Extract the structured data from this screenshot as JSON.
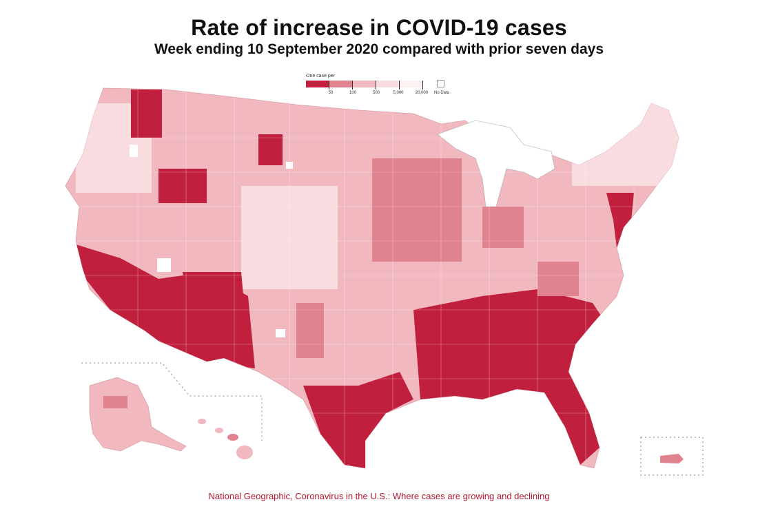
{
  "header": {
    "title": "Rate of increase in COVID-19 cases",
    "subtitle": "Week ending 10 September 2020 compared with prior seven days"
  },
  "legend": {
    "title": "One case per",
    "ticks": [
      "50",
      "100",
      "500",
      "5,000",
      "20,000"
    ],
    "no_data_label": "No Data",
    "colors": [
      "#c0203d",
      "#e0838f",
      "#f1b9bf",
      "#f8dcdf",
      "#fdf1f2"
    ],
    "no_data_color": "#ffffff"
  },
  "source": "National Geographic, Coronavirus in the U.S.: Where cases are growing and declining",
  "map_regions": {
    "high": "#c0203d",
    "mid": "#e0838f",
    "low": "#f1b9bf",
    "lighter": "#f8dcdf",
    "lightest": "#fdf1f2"
  }
}
